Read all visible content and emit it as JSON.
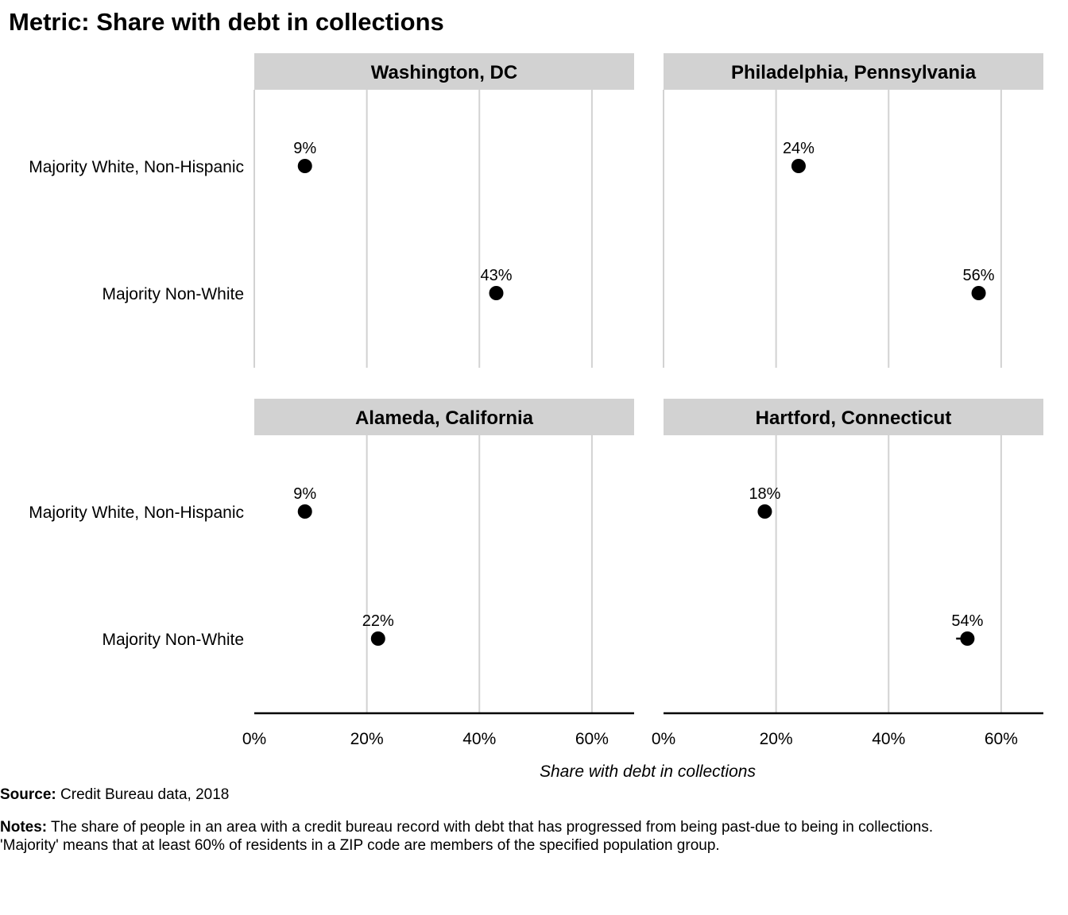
{
  "title": "Metric: Share with debt in collections",
  "chart_data": {
    "type": "scatter",
    "title": "Metric: Share with debt in collections",
    "xlabel": "Share with debt in collections",
    "ylabel": "",
    "xlim": [
      0,
      0.675
    ],
    "x_ticks": [
      0,
      0.2,
      0.4,
      0.6
    ],
    "x_tick_labels": [
      "0%",
      "20%",
      "40%",
      "60%"
    ],
    "categories": [
      "Majority White, Non-Hispanic",
      "Majority Non-White"
    ],
    "grid": "vertical",
    "layout": "2x2 facets",
    "marker_color": "#000000",
    "panels": [
      {
        "name": "Washington, DC",
        "points": [
          {
            "category": "Majority White, Non-Hispanic",
            "value": 0.09,
            "label": "9%"
          },
          {
            "category": "Majority Non-White",
            "value": 0.43,
            "label": "43%"
          }
        ]
      },
      {
        "name": "Philadelphia, Pennsylvania",
        "points": [
          {
            "category": "Majority White, Non-Hispanic",
            "value": 0.24,
            "label": "24%"
          },
          {
            "category": "Majority Non-White",
            "value": 0.56,
            "label": "56%"
          }
        ]
      },
      {
        "name": "Alameda, California",
        "points": [
          {
            "category": "Majority White, Non-Hispanic",
            "value": 0.09,
            "label": "9%"
          },
          {
            "category": "Majority Non-White",
            "value": 0.22,
            "label": "22%"
          }
        ]
      },
      {
        "name": "Hartford, Connecticut",
        "points": [
          {
            "category": "Majority White, Non-Hispanic",
            "value": 0.18,
            "label": "18%"
          },
          {
            "category": "Majority Non-White",
            "value": 0.54,
            "label": "54%",
            "ci": [
              0.52,
              0.55
            ]
          }
        ]
      }
    ]
  },
  "footer": {
    "source_label": "Source:",
    "source_text": " Credit Bureau data, 2018",
    "notes_label": "Notes:",
    "notes_text": " The share of people in an area with a credit bureau record with debt that has progressed from being past-due to being in collections. 'Majority' means that at least 60% of residents in a ZIP code are members of the specified population group."
  }
}
